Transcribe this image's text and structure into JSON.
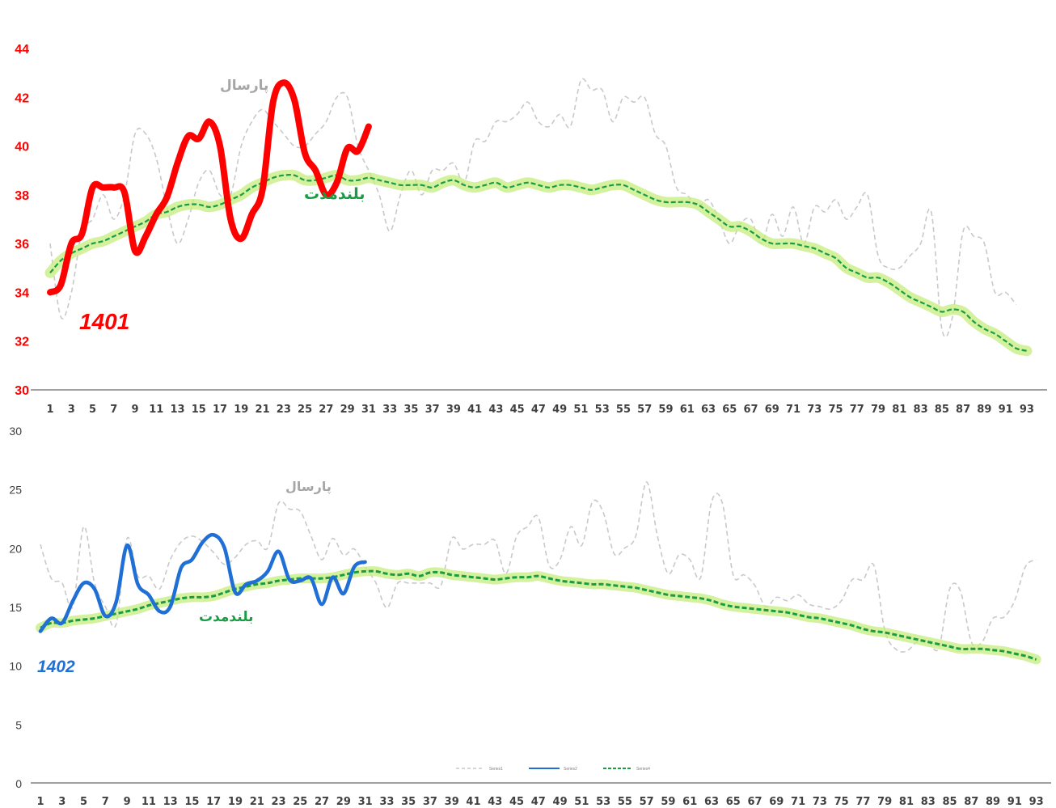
{
  "colors": {
    "top_series": "#ff0000",
    "bottom_series": "#1f6fd6",
    "last_year": "#c9c9c9",
    "long_term": "#1a9c44",
    "glow": "#c6ec7c",
    "top_ticks": "#ff0000"
  },
  "chart_data": [
    {
      "type": "line",
      "year_label": "1401",
      "ylim": [
        30,
        44
      ],
      "yticks": [
        "30",
        "32",
        "34",
        "36",
        "38",
        "40",
        "42",
        "44"
      ],
      "x_range": [
        1,
        94
      ],
      "x_ticks": [
        "1",
        "3",
        "5",
        "7",
        "9",
        "11",
        "13",
        "15",
        "17",
        "19",
        "21",
        "23",
        "25",
        "27",
        "29",
        "31",
        "33",
        "35",
        "37",
        "39",
        "41",
        "43",
        "45",
        "47",
        "49",
        "51",
        "53",
        "55",
        "57",
        "59",
        "61",
        "63",
        "65",
        "67",
        "69",
        "71",
        "73",
        "75",
        "77",
        "79",
        "81",
        "83",
        "85",
        "87",
        "89",
        "91",
        "93"
      ],
      "annotations": {
        "last_year": "پارسال",
        "long_term": "بلندمدت"
      },
      "series": [
        {
          "role": "current",
          "x_start": 1,
          "values": [
            34.0,
            34.3,
            36.0,
            36.4,
            38.3,
            38.3,
            38.3,
            38.1,
            35.7,
            36.3,
            37.2,
            37.9,
            39.3,
            40.4,
            40.3,
            41.0,
            40.0,
            37.0,
            36.2,
            37.2,
            38.2,
            41.8,
            42.6,
            41.9,
            39.7,
            39.0,
            38.0,
            38.5,
            39.9,
            39.8,
            40.8
          ]
        },
        {
          "role": "last_year",
          "x_start": 1,
          "values": [
            36.0,
            33.0,
            34.0,
            36.5,
            37.0,
            38.0,
            37.0,
            38.0,
            40.5,
            40.5,
            39.5,
            37.5,
            36.0,
            37.0,
            38.5,
            39.0,
            38.0,
            38.0,
            40.0,
            41.0,
            41.5,
            41.0,
            40.5,
            40.0,
            40.0,
            40.5,
            41.0,
            42.0,
            42.0,
            40.0,
            39.0,
            38.0,
            36.5,
            38.0,
            39.0,
            38.0,
            39.0,
            39.0,
            39.3,
            38.5,
            40.2,
            40.2,
            41.0,
            41.0,
            41.3,
            41.8,
            41.0,
            40.8,
            41.3,
            40.8,
            42.7,
            42.3,
            42.3,
            41.0,
            42.0,
            41.8,
            42.0,
            40.5,
            40.0,
            38.3,
            38.0,
            37.5,
            37.8,
            37.0,
            36.0,
            36.8,
            37.0,
            36.0,
            37.2,
            36.3,
            37.5,
            36.0,
            37.5,
            37.3,
            37.8,
            37.0,
            37.5,
            38.0,
            35.5,
            35.0,
            35.0,
            35.5,
            36.0,
            37.3,
            32.5,
            33.0,
            36.5,
            36.3,
            36.0,
            34.0,
            34.0,
            33.5
          ]
        },
        {
          "role": "long_term",
          "x_start": 1,
          "values": [
            34.8,
            35.3,
            35.6,
            35.8,
            36.0,
            36.1,
            36.3,
            36.5,
            36.7,
            36.9,
            37.2,
            37.3,
            37.5,
            37.6,
            37.6,
            37.5,
            37.6,
            37.8,
            38.0,
            38.3,
            38.5,
            38.7,
            38.8,
            38.8,
            38.6,
            38.6,
            38.7,
            38.8,
            38.6,
            38.6,
            38.7,
            38.6,
            38.5,
            38.4,
            38.4,
            38.4,
            38.3,
            38.5,
            38.6,
            38.4,
            38.3,
            38.4,
            38.5,
            38.3,
            38.4,
            38.5,
            38.4,
            38.3,
            38.4,
            38.4,
            38.3,
            38.2,
            38.3,
            38.4,
            38.4,
            38.2,
            38.0,
            37.8,
            37.7,
            37.7,
            37.7,
            37.6,
            37.3,
            37.0,
            36.7,
            36.7,
            36.5,
            36.2,
            36.0,
            36.0,
            36.0,
            35.9,
            35.8,
            35.6,
            35.4,
            35.0,
            34.8,
            34.6,
            34.6,
            34.4,
            34.1,
            33.8,
            33.6,
            33.4,
            33.2,
            33.3,
            33.2,
            32.8,
            32.5,
            32.3,
            32.0,
            31.7,
            31.6
          ]
        }
      ]
    },
    {
      "type": "line",
      "year_label": "1402",
      "ylim": [
        0,
        30
      ],
      "yticks": [
        "0",
        "5",
        "10",
        "15",
        "20",
        "25",
        "30"
      ],
      "x_range": [
        1,
        94
      ],
      "x_ticks": [
        "1",
        "3",
        "5",
        "7",
        "9",
        "11",
        "13",
        "15",
        "17",
        "19",
        "21",
        "23",
        "25",
        "27",
        "29",
        "31",
        "33",
        "35",
        "37",
        "39",
        "41",
        "43",
        "45",
        "47",
        "49",
        "51",
        "53",
        "55",
        "57",
        "59",
        "61",
        "63",
        "65",
        "67",
        "69",
        "71",
        "73",
        "75",
        "77",
        "79",
        "81",
        "83",
        "85",
        "87",
        "89",
        "91",
        "93"
      ],
      "annotations": {
        "last_year": "پارسال",
        "long_term": "بلندمدت"
      },
      "legend": {
        "position": "bottom",
        "entries": [
          "Series1",
          "Series2",
          "Series4"
        ]
      },
      "series": [
        {
          "role": "current",
          "x_start": 1,
          "values": [
            12.9,
            14.0,
            13.6,
            15.5,
            17.0,
            16.5,
            14.2,
            15.4,
            20.2,
            16.9,
            16.0,
            14.6,
            15.0,
            18.3,
            19.0,
            20.5,
            21.1,
            20.0,
            16.2,
            16.9,
            17.2,
            18.0,
            19.7,
            17.3,
            17.2,
            17.4,
            15.2,
            17.5,
            16.1,
            18.4,
            18.8
          ]
        },
        {
          "role": "last_year",
          "x_start": 1,
          "values": [
            20.3,
            17.4,
            17.0,
            15.0,
            21.8,
            17.0,
            15.0,
            13.5,
            20.8,
            17.6,
            17.6,
            16.5,
            19.0,
            20.5,
            21.0,
            20.5,
            19.6,
            18.6,
            19.2,
            20.3,
            20.6,
            20.0,
            23.8,
            23.3,
            23.1,
            21.0,
            19.0,
            20.8,
            19.4,
            19.9,
            18.4,
            17.0,
            14.9,
            17.0,
            17.0,
            17.0,
            17.0,
            16.8,
            20.8,
            19.9,
            20.3,
            20.3,
            20.6,
            17.8,
            21.0,
            21.8,
            22.6,
            18.5,
            19.0,
            21.8,
            20.2,
            23.9,
            23.0,
            19.5,
            20.0,
            21.0,
            25.6,
            21.0,
            17.8,
            19.4,
            19.0,
            17.5,
            23.9,
            23.8,
            17.7,
            17.7,
            16.8,
            15.0,
            15.8,
            15.5,
            16.0,
            15.2,
            15.0,
            14.8,
            15.5,
            17.3,
            17.3,
            18.5,
            13.0,
            11.4,
            11.2,
            12.0,
            12.0,
            11.5,
            16.5,
            16.3,
            12.0,
            12.0,
            14.0,
            14.1,
            15.5,
            18.4,
            19.0
          ]
        },
        {
          "role": "long_term",
          "x_start": 1,
          "values": [
            13.2,
            13.6,
            13.6,
            13.8,
            13.9,
            14.0,
            14.2,
            14.4,
            14.6,
            14.8,
            15.1,
            15.3,
            15.5,
            15.7,
            15.8,
            15.8,
            15.9,
            16.2,
            16.5,
            16.7,
            16.9,
            17.0,
            17.2,
            17.3,
            17.4,
            17.4,
            17.4,
            17.5,
            17.7,
            17.9,
            18.0,
            18.0,
            17.8,
            17.7,
            17.8,
            17.6,
            17.9,
            17.9,
            17.7,
            17.6,
            17.5,
            17.4,
            17.3,
            17.4,
            17.5,
            17.5,
            17.6,
            17.4,
            17.2,
            17.1,
            17.0,
            16.9,
            16.9,
            16.8,
            16.7,
            16.6,
            16.4,
            16.2,
            16.0,
            15.9,
            15.8,
            15.7,
            15.5,
            15.2,
            15.0,
            14.9,
            14.8,
            14.7,
            14.6,
            14.5,
            14.3,
            14.1,
            14.0,
            13.8,
            13.6,
            13.4,
            13.1,
            12.9,
            12.8,
            12.6,
            12.4,
            12.2,
            12.0,
            11.8,
            11.6,
            11.4,
            11.4,
            11.4,
            11.3,
            11.2,
            11.0,
            10.8,
            10.5
          ]
        }
      ]
    }
  ]
}
